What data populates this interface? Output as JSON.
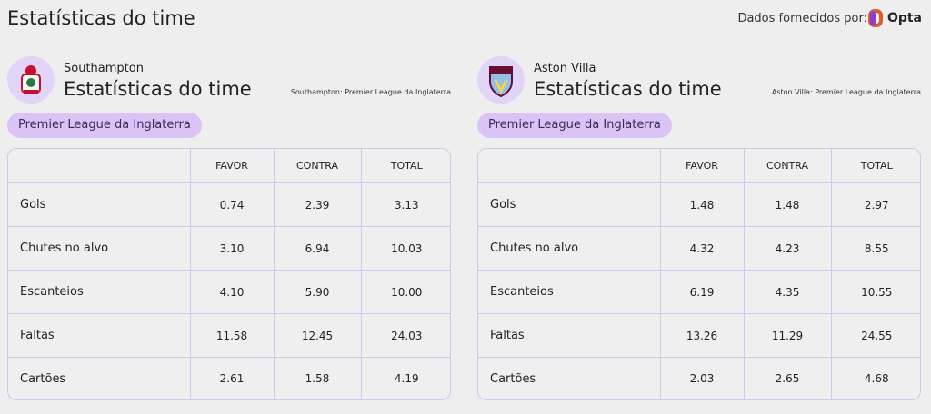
{
  "header": {
    "title": "Estatísticas do time",
    "provider": "Dados fornecidos por:",
    "brand": "Opta"
  },
  "teams": [
    {
      "name": "Southampton",
      "title": "Estatísticas do time",
      "subtitle": "Southampton: Premier League da Inglaterra",
      "league": "Premier League da Inglaterra",
      "table": {
        "columns": [
          "FAVOR",
          "CONTRA",
          "TOTAL"
        ],
        "rows": [
          {
            "label": "Gols",
            "cells": [
              "0.74",
              "2.39",
              "3.13"
            ]
          },
          {
            "label": "Chutes no alvo",
            "cells": [
              "3.10",
              "6.94",
              "10.03"
            ]
          },
          {
            "label": "Escanteios",
            "cells": [
              "4.10",
              "5.90",
              "10.00"
            ]
          },
          {
            "label": "Faltas",
            "cells": [
              "11.58",
              "12.45",
              "24.03"
            ]
          },
          {
            "label": "Cartões",
            "cells": [
              "2.61",
              "1.58",
              "4.19"
            ]
          }
        ]
      }
    },
    {
      "name": "Aston Villa",
      "title": "Estatísticas do time",
      "subtitle": "Aston Villa: Premier League da Inglaterra",
      "league": "Premier League da Inglaterra",
      "table": {
        "columns": [
          "FAVOR",
          "CONTRA",
          "TOTAL"
        ],
        "rows": [
          {
            "label": "Gols",
            "cells": [
              "1.48",
              "1.48",
              "2.97"
            ]
          },
          {
            "label": "Chutes no alvo",
            "cells": [
              "4.32",
              "4.23",
              "8.55"
            ]
          },
          {
            "label": "Escanteios",
            "cells": [
              "6.19",
              "4.35",
              "10.55"
            ]
          },
          {
            "label": "Faltas",
            "cells": [
              "13.26",
              "11.29",
              "24.55"
            ]
          },
          {
            "label": "Cartões",
            "cells": [
              "2.03",
              "2.65",
              "4.68"
            ]
          }
        ]
      }
    }
  ]
}
